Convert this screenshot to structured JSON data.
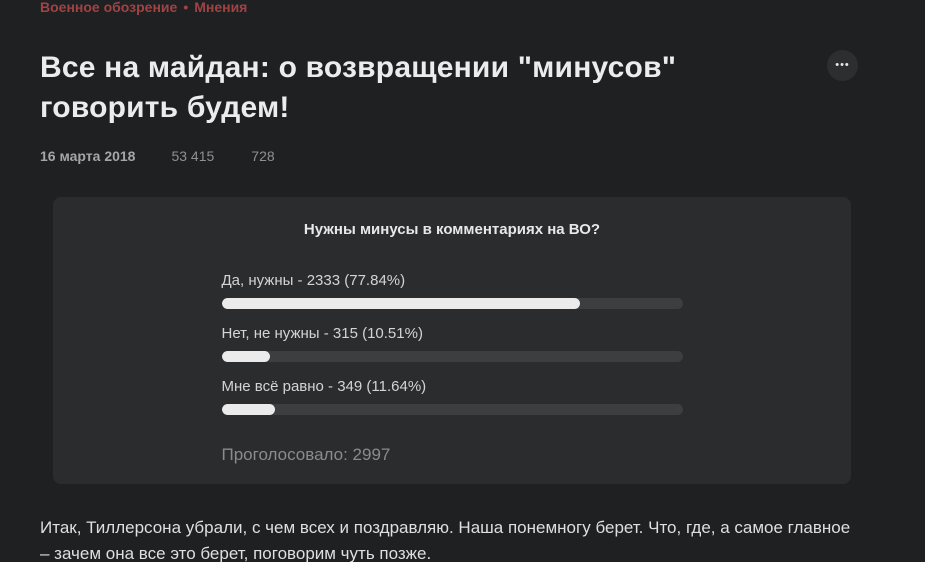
{
  "colors": {
    "background": "#1f2022",
    "card": "#2b2c2e",
    "accent_red": "#a04345",
    "bar_track": "#3d3e40",
    "bar_fill": "#ebebeb"
  },
  "breadcrumb": {
    "site": "Военное обозрение",
    "separator": "•",
    "section": "Мнения"
  },
  "article": {
    "title": "Все на майдан: о возвращении \"минусов\" говорить будем!",
    "date": "16 марта 2018",
    "views": "53 415",
    "comments": "728"
  },
  "icons": {
    "more": "•••"
  },
  "poll": {
    "question": "Нужны минусы в комментариях на ВО?",
    "options": [
      {
        "label": "Да, нужны - 2333 (77.84%)",
        "percent": 77.84
      },
      {
        "label": "Нет, не нужны - 315 (10.51%)",
        "percent": 10.51
      },
      {
        "label": "Мне всё равно - 349 (11.64%)",
        "percent": 11.64
      }
    ],
    "voted": "Проголосовало: 2997"
  },
  "body": {
    "paragraph": "Итак, Тиллерсона убрали, с чем всех и поздравляю. Наша понемногу берет. Что, где, а самое главное – зачем она все это берет, поговорим чуть позже."
  }
}
